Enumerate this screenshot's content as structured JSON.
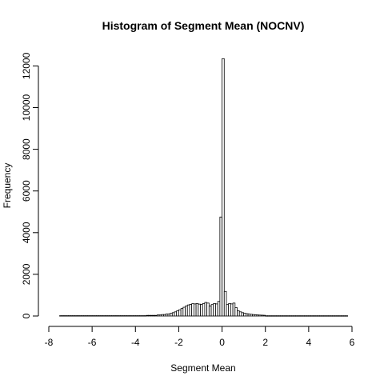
{
  "chart_data": {
    "type": "bar",
    "title": "Histogram of Segment Mean (NOCNV)",
    "xlabel": "Segment Mean",
    "ylabel": "Frequency",
    "xlim": [
      -8,
      6
    ],
    "ylim": [
      0,
      12400
    ],
    "x_ticks": [
      -8,
      -6,
      -4,
      -2,
      0,
      2,
      4,
      6
    ],
    "y_ticks": [
      0,
      2000,
      4000,
      6000,
      8000,
      10000,
      12000
    ],
    "bin_width": 0.1,
    "bins": [
      {
        "x0": -7.5,
        "x1": -3.5,
        "y": 15
      },
      {
        "x0": -3.5,
        "x1": -3.0,
        "y": 30
      },
      {
        "x0": -3.0,
        "x1": -2.8,
        "y": 50
      },
      {
        "x0": -2.8,
        "x1": -2.6,
        "y": 70
      },
      {
        "x0": -2.6,
        "x1": -2.4,
        "y": 100
      },
      {
        "x0": -2.4,
        "x1": -2.3,
        "y": 130
      },
      {
        "x0": -2.3,
        "x1": -2.2,
        "y": 160
      },
      {
        "x0": -2.2,
        "x1": -2.1,
        "y": 200
      },
      {
        "x0": -2.1,
        "x1": -2.0,
        "y": 250
      },
      {
        "x0": -2.0,
        "x1": -1.9,
        "y": 300
      },
      {
        "x0": -1.9,
        "x1": -1.8,
        "y": 360
      },
      {
        "x0": -1.8,
        "x1": -1.7,
        "y": 420
      },
      {
        "x0": -1.7,
        "x1": -1.6,
        "y": 480
      },
      {
        "x0": -1.6,
        "x1": -1.5,
        "y": 530
      },
      {
        "x0": -1.5,
        "x1": -1.4,
        "y": 560
      },
      {
        "x0": -1.4,
        "x1": -1.3,
        "y": 590
      },
      {
        "x0": -1.3,
        "x1": -1.2,
        "y": 580
      },
      {
        "x0": -1.2,
        "x1": -1.1,
        "y": 600
      },
      {
        "x0": -1.1,
        "x1": -1.0,
        "y": 570
      },
      {
        "x0": -1.0,
        "x1": -0.9,
        "y": 560
      },
      {
        "x0": -0.9,
        "x1": -0.8,
        "y": 600
      },
      {
        "x0": -0.8,
        "x1": -0.7,
        "y": 650
      },
      {
        "x0": -0.7,
        "x1": -0.6,
        "y": 620
      },
      {
        "x0": -0.6,
        "x1": -0.5,
        "y": 480
      },
      {
        "x0": -0.5,
        "x1": -0.4,
        "y": 550
      },
      {
        "x0": -0.4,
        "x1": -0.3,
        "y": 600
      },
      {
        "x0": -0.3,
        "x1": -0.2,
        "y": 580
      },
      {
        "x0": -0.2,
        "x1": -0.1,
        "y": 700
      },
      {
        "x0": -0.1,
        "x1": 0.0,
        "y": 4750
      },
      {
        "x0": 0.0,
        "x1": 0.1,
        "y": 12350
      },
      {
        "x0": 0.1,
        "x1": 0.2,
        "y": 1180
      },
      {
        "x0": 0.2,
        "x1": 0.3,
        "y": 550
      },
      {
        "x0": 0.3,
        "x1": 0.4,
        "y": 600
      },
      {
        "x0": 0.4,
        "x1": 0.5,
        "y": 580
      },
      {
        "x0": 0.5,
        "x1": 0.6,
        "y": 620
      },
      {
        "x0": 0.6,
        "x1": 0.7,
        "y": 400
      },
      {
        "x0": 0.7,
        "x1": 0.8,
        "y": 250
      },
      {
        "x0": 0.8,
        "x1": 0.9,
        "y": 200
      },
      {
        "x0": 0.9,
        "x1": 1.0,
        "y": 160
      },
      {
        "x0": 1.0,
        "x1": 1.1,
        "y": 130
      },
      {
        "x0": 1.1,
        "x1": 1.2,
        "y": 110
      },
      {
        "x0": 1.2,
        "x1": 1.3,
        "y": 95
      },
      {
        "x0": 1.3,
        "x1": 1.4,
        "y": 80
      },
      {
        "x0": 1.4,
        "x1": 1.5,
        "y": 70
      },
      {
        "x0": 1.5,
        "x1": 1.6,
        "y": 60
      },
      {
        "x0": 1.6,
        "x1": 1.7,
        "y": 50
      },
      {
        "x0": 1.7,
        "x1": 1.8,
        "y": 45
      },
      {
        "x0": 1.8,
        "x1": 1.9,
        "y": 40
      },
      {
        "x0": 1.9,
        "x1": 2.0,
        "y": 35
      },
      {
        "x0": 2.0,
        "x1": 5.8,
        "y": 12
      }
    ]
  }
}
